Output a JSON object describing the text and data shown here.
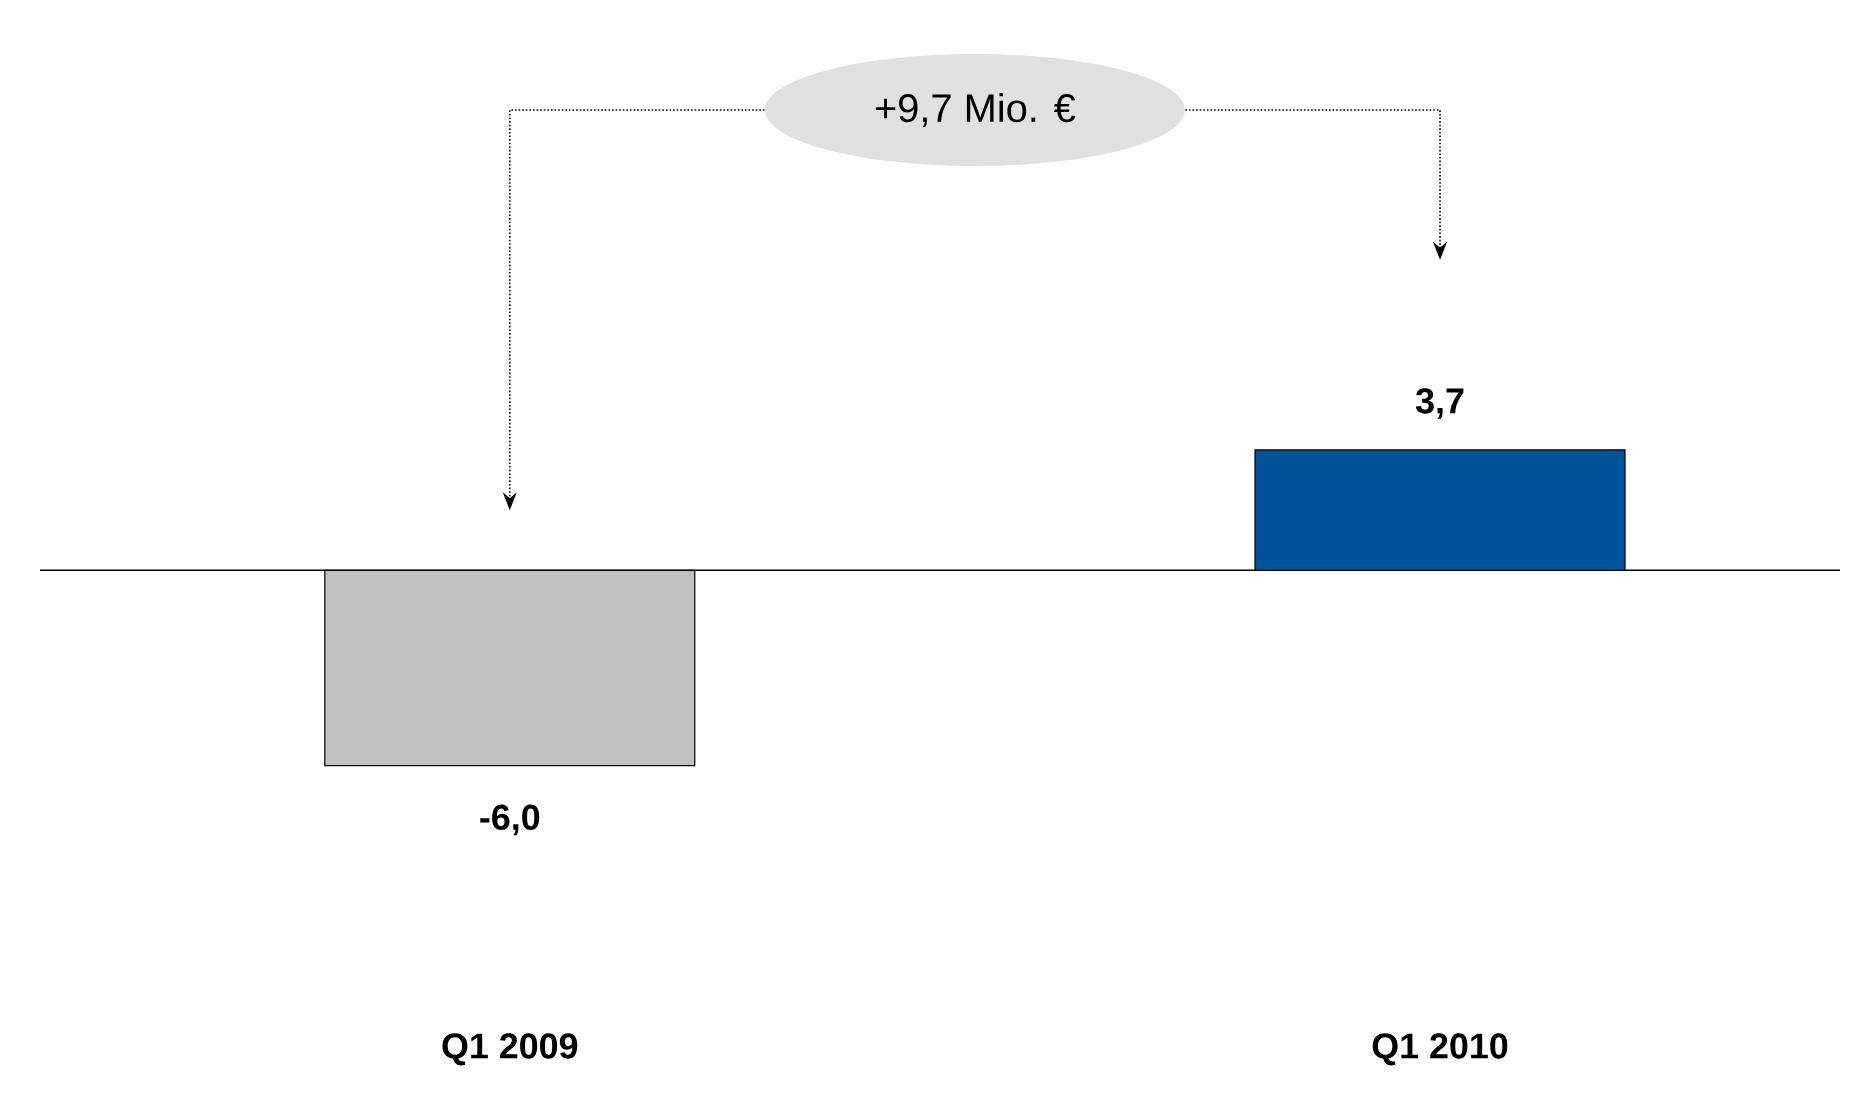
{
  "chart_data": {
    "type": "bar",
    "categories": [
      "Q1 2009",
      "Q1 2010"
    ],
    "values": [
      -6.0,
      3.7
    ],
    "colors": [
      "#c0c0c0",
      "#00529b"
    ],
    "value_labels": [
      "-6,0",
      "3,7"
    ],
    "annotations": [
      "+9,7 Mio. €"
    ]
  }
}
